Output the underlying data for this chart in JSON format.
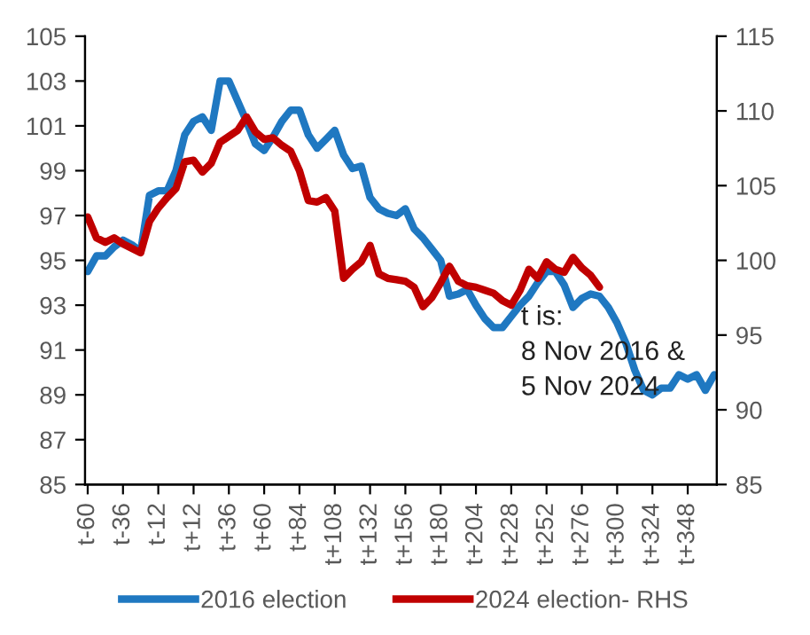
{
  "chart_data": {
    "type": "line",
    "categories": [
      "t-60",
      null,
      null,
      null,
      "t-36",
      null,
      null,
      null,
      "t-12",
      null,
      null,
      null,
      "t+12",
      null,
      null,
      null,
      "t+36",
      null,
      null,
      null,
      "t+60",
      null,
      null,
      null,
      "t+84",
      null,
      null,
      null,
      "t+108",
      null,
      null,
      null,
      "t+132",
      null,
      null,
      null,
      "t+156",
      null,
      null,
      null,
      "t+180",
      null,
      null,
      null,
      "t+204",
      null,
      null,
      null,
      "t+228",
      null,
      null,
      null,
      "t+252",
      null,
      null,
      null,
      "t+276",
      null,
      null,
      null,
      "t+300",
      null,
      null,
      null,
      "t+324",
      null,
      null,
      null,
      "t+348",
      null,
      null,
      null
    ],
    "ylim": [
      85,
      105
    ],
    "yticks": [
      85,
      87,
      89,
      91,
      93,
      95,
      97,
      99,
      101,
      103,
      105
    ],
    "y2lim": [
      85,
      115
    ],
    "y2ticks": [
      85,
      90,
      95,
      100,
      105,
      110,
      115
    ],
    "grid": false,
    "legend": "bottom",
    "line_style": "solid",
    "marker": "none",
    "annotations": [
      "t is:\n8 Nov 2016 &\n5 Nov 2024"
    ],
    "series": [
      {
        "name": "2016 election",
        "color": "#1f78c1",
        "values": [
          94.5,
          95.2,
          95.2,
          95.6,
          95.9,
          95.7,
          95.4,
          97.9,
          98.1,
          98.1,
          99.0,
          100.6,
          101.2,
          101.4,
          100.8,
          103.0,
          103.0,
          102.1,
          101.2,
          100.2,
          99.9,
          100.5,
          101.2,
          101.7,
          101.7,
          100.6,
          100.0,
          100.4,
          100.8,
          99.7,
          99.1,
          99.2,
          97.8,
          97.3,
          97.1,
          97.0,
          97.3,
          96.4,
          96.0,
          95.5,
          95.0,
          93.4,
          93.5,
          93.7,
          93.0,
          92.4,
          92.0,
          92.0,
          92.5,
          93.0,
          93.4,
          94.0,
          94.5,
          94.5,
          93.9,
          92.9,
          93.3,
          93.5,
          93.4,
          92.9,
          92.2,
          91.3,
          90.1,
          89.2,
          89.0,
          89.3,
          89.3,
          89.9,
          89.7,
          89.9,
          89.2,
          89.9
        ]
      },
      {
        "name": "2024 election- RHS",
        "color": "#c00000",
        "axis": "y2",
        "values": [
          102.9,
          101.5,
          101.2,
          101.5,
          101.1,
          100.8,
          100.5,
          102.6,
          103.5,
          104.2,
          104.8,
          106.6,
          106.7,
          105.9,
          106.5,
          107.9,
          108.3,
          108.7,
          109.6,
          108.6,
          108.1,
          108.2,
          107.7,
          107.3,
          106.0,
          104.0,
          103.9,
          104.2,
          103.3,
          98.8,
          99.4,
          99.9,
          101.0,
          99.1,
          98.8,
          98.7,
          98.6,
          98.2,
          96.9,
          97.5,
          98.5,
          99.6,
          98.6,
          98.3,
          98.2,
          98.0,
          97.8,
          97.3,
          97.0,
          98.0,
          99.4,
          98.8,
          99.9,
          99.4,
          99.2,
          100.2,
          99.5,
          99.0,
          98.2,
          null,
          null,
          null,
          null,
          null,
          null,
          null,
          null,
          null,
          null,
          null,
          null,
          null
        ]
      }
    ]
  }
}
